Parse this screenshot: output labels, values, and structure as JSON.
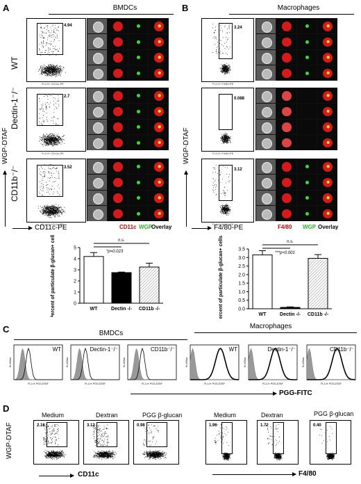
{
  "panels": {
    "A": {
      "letter": "A",
      "title": "BMDCs",
      "rows": [
        {
          "label": "WT",
          "gate_value": "4.94",
          "xaxis": "FL2-H: CD11c-PE"
        },
        {
          "label": "Dectin-1⁻/⁻",
          "gate_value": "2.7",
          "xaxis": "FL2-H: CD11c-PE"
        },
        {
          "label": "CD11b⁻/⁻",
          "gate_value": "3.52",
          "xaxis": "FL2-H: CD11c-PE"
        }
      ],
      "yaxis_small": "FL1-H: WGP-DTAF",
      "big_y": "WGP-DTAF",
      "big_x": "CD11c-PE",
      "legend": [
        "CD11c",
        "WGP",
        "Overlay"
      ],
      "image_headers": [
        "CH06",
        "CH03",
        "CH02",
        "CH03/CH02"
      ]
    },
    "B": {
      "letter": "B",
      "title": "Macrophages",
      "rows": [
        {
          "gate_value": "3.24",
          "xaxis": "FL2-H: F4/80-PE"
        },
        {
          "gate_value": "0.088",
          "xaxis": "FL2-H: F4/80-PE"
        },
        {
          "gate_value": "3.12",
          "xaxis": "FL2-H: F4/80-PE"
        }
      ],
      "yaxis_small": "FL1-H: WGP-DTAF",
      "big_y": "WGP-DTAF",
      "big_x": "F4/80-PE",
      "legend": [
        "F4/80",
        "WGP",
        "Overlay"
      ]
    },
    "C": {
      "letter": "C",
      "title_left": "BMDCs",
      "title_right": "Macrophages",
      "hist_labels": [
        "WT",
        "Dectin-1⁻/⁻",
        "CD11b⁻/⁻",
        "WT",
        "Dectin-1⁻/⁻",
        "CD11b⁻/⁻"
      ],
      "yaxis": "% of Max",
      "xaxis": "FL1-H: PGG-DTAF",
      "big_x": "PGG-FITC"
    },
    "D": {
      "letter": "D",
      "left_labels": [
        "Medium",
        "Dextran",
        "PGG β-glucan"
      ],
      "left_values": [
        "2.16",
        "3.12",
        "0.98"
      ],
      "right_labels": [
        "Medium",
        "Dextran",
        "PGG β-glucan"
      ],
      "right_values": [
        "1.96",
        "1.72",
        "0.40"
      ],
      "big_y": "WGP-DTAF",
      "left_x": "CD11c",
      "right_x": "F4/80",
      "small_y": "FL1-H: WGP-DTAF",
      "small_x_left": "FL4-H: CD11c-APC",
      "small_x_right": "FL4-H: F480-APC"
    }
  },
  "chart_data": [
    {
      "type": "bar",
      "title": "",
      "ylabel": "Percent of particulate β-glucan+ cells",
      "categories": [
        "WT",
        "Dectin -/-",
        "CD11b -/-"
      ],
      "values": [
        4.2,
        2.75,
        3.25
      ],
      "errors": [
        0.35,
        0.05,
        0.35
      ],
      "ylim": [
        0,
        5
      ],
      "yticks": [
        "0",
        "1",
        "2",
        "3",
        "4",
        "5"
      ],
      "annotations": [
        "*p=0.023",
        "n.s."
      ]
    },
    {
      "type": "bar",
      "title": "",
      "ylabel": "Percent of particulate β-glucan+ cells",
      "categories": [
        "WT",
        "Dectin -/-",
        "CD11b -/-"
      ],
      "values": [
        3.15,
        0.08,
        2.95
      ],
      "errors": [
        0.25,
        0.03,
        0.22
      ],
      "ylim": [
        0,
        3.5
      ],
      "yticks": [
        "0.0",
        "0.5",
        "1.0",
        "1.5",
        "2.0",
        "2.5",
        "3.0",
        "3.5"
      ],
      "annotations": [
        "***p<0.001",
        "n.s."
      ]
    }
  ]
}
